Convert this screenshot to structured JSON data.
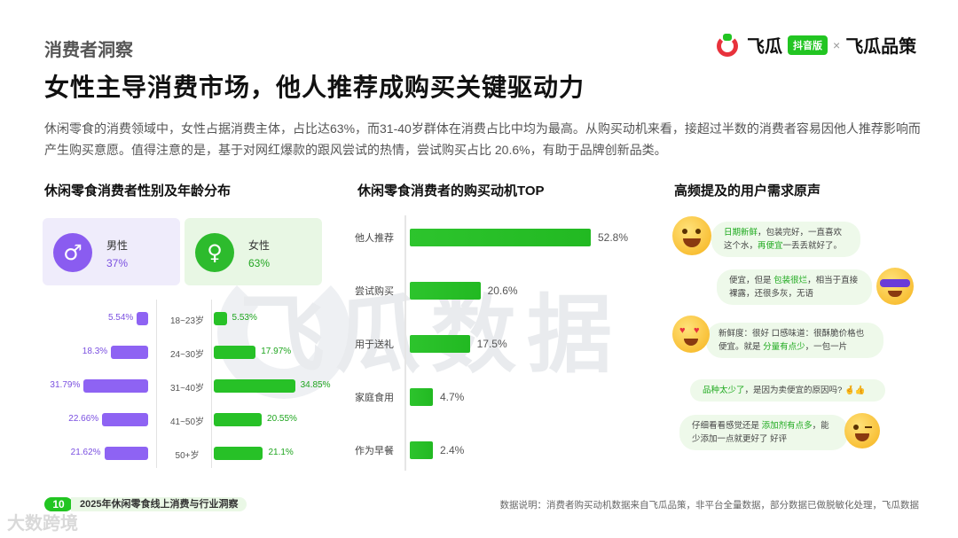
{
  "header": {
    "section_label": "消费者洞察",
    "headline": "女性主导消费市场，他人推荐成购买关键驱动力",
    "intro": "休闲零食的消费领域中，女性占据消费主体，占比达63%，而31-40岁群体在消费占比中均为最高。从购买动机来看，接超过半数的消费者容易因他人推荐影响而产生购买意愿。值得注意的是，基于对网红爆款的跟风尝试的热情，尝试购买占比 20.6%，有助于品牌创新品类。"
  },
  "logo": {
    "brand": "飞瓜",
    "tag": "抖音版",
    "separator": "×",
    "partner": "飞瓜品策"
  },
  "watermark": {
    "text": "飞瓜数据",
    "corner": "大数跨境"
  },
  "colors": {
    "male": "#8e63f3",
    "female": "#27c127",
    "bar": "#22b922",
    "bubble": "#eef9ea"
  },
  "chart_data": [
    {
      "type": "bar",
      "title": "休闲零食消费者性别及年龄分布",
      "gender": [
        {
          "label": "男性",
          "value": "37%",
          "icon": "male-symbol-icon"
        },
        {
          "label": "女性",
          "value": "63%",
          "icon": "female-symbol-icon"
        }
      ],
      "categories": [
        "18~23岁",
        "24~30岁",
        "31~40岁",
        "41~50岁",
        "50+岁"
      ],
      "series": [
        {
          "name": "男性",
          "values": [
            5.54,
            18.3,
            31.79,
            22.66,
            21.62
          ],
          "labels": [
            "5.54%",
            "18.3%",
            "31.79%",
            "22.66%",
            "21.62%"
          ]
        },
        {
          "name": "女性",
          "values": [
            5.53,
            17.97,
            34.85,
            20.55,
            21.1
          ],
          "labels": [
            "5.53%",
            "17.97%",
            "34.85%",
            "20.55%",
            "21.1%"
          ]
        }
      ]
    },
    {
      "type": "bar",
      "title": "休闲零食消费者的购买动机TOP",
      "categories": [
        "他人推荐",
        "尝试购买",
        "用于送礼",
        "家庭食用",
        "作为早餐"
      ],
      "values": [
        52.8,
        20.6,
        17.5,
        4.7,
        2.4
      ],
      "labels": [
        "52.8%",
        "20.6%",
        "17.5%",
        "4.7%",
        "2.4%"
      ]
    }
  ],
  "voices": {
    "title": "高频提及的用户需求原声",
    "items": [
      {
        "pre": "",
        "hl": "日期新鲜",
        "post": "，包装完好，一直喜欢这个水，",
        "hl2": "再便宜",
        "post2": "一丢丢就好了。"
      },
      {
        "pre": "便宜，但是 ",
        "hl": "包装很烂",
        "post": "，相当于直接裸露，还很多灰，无语",
        "hl2": "",
        "post2": ""
      },
      {
        "pre": "新鲜度：很好 口感味道：很酥脆价格也便宜。就是 ",
        "hl": "分量有点少",
        "post": "，一包一片",
        "hl2": "",
        "post2": ""
      },
      {
        "pre": "",
        "hl": "品种太少了",
        "post": "，是因为卖便宜的原因吗? 🤞👍",
        "hl2": "",
        "post2": ""
      },
      {
        "pre": "仔细看看感觉还是 ",
        "hl": "添加剂有点多",
        "post": "，能少添加一点就更好了 好评",
        "hl2": "",
        "post2": ""
      }
    ]
  },
  "footer": {
    "page_num": "10",
    "report_title": "2025年休闲零食线上消费与行业洞察",
    "note": "数据说明：消费者购买动机数据来自飞瓜品策，非平台全量数据，部分数据已做脱敏化处理，飞瓜数据"
  }
}
